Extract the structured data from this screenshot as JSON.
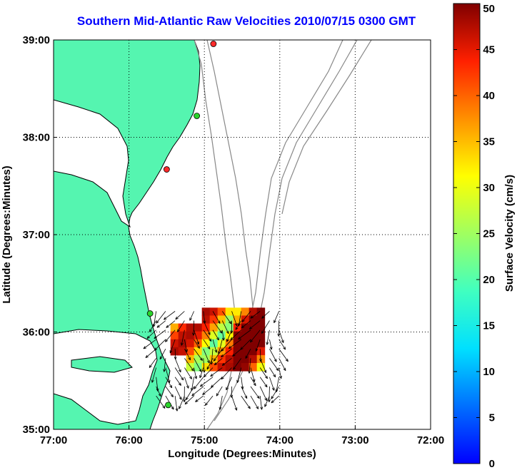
{
  "title": "Southern Mid-Atlantic Raw Velocities 2010/07/15 0300 GMT",
  "map": {
    "lon_range": [
      -77,
      -72
    ],
    "lat_range": [
      35,
      39
    ],
    "x_ticks": [
      "77:00",
      "76:00",
      "75:00",
      "74:00",
      "73:00",
      "72:00"
    ],
    "y_ticks": [
      "35:00",
      "36:00",
      "37:00",
      "38:00",
      "39:00"
    ],
    "xlabel": "Longitude (Degrees:Minutes)",
    "ylabel": "Latitude (Degrees:Minutes)",
    "grid": "dotted",
    "land_color": "#55f5b0",
    "bathymetry_color": "#888888"
  },
  "stations": [
    {
      "lon": -74.88,
      "lat": 38.96,
      "color": "#ff2a2a"
    },
    {
      "lon": -75.1,
      "lat": 38.22,
      "color": "#2bd42b"
    },
    {
      "lon": -75.5,
      "lat": 37.67,
      "color": "#ff2a2a"
    },
    {
      "lon": -75.72,
      "lat": 36.19,
      "color": "#2bd42b"
    },
    {
      "lon": -75.48,
      "lat": 35.25,
      "color": "#2bd42b"
    }
  ],
  "colorbar": {
    "label": "Surface Velocity (cm/s)",
    "ticks": [
      "0",
      "5",
      "10",
      "15",
      "20",
      "25",
      "30",
      "35",
      "40",
      "45",
      "50"
    ],
    "min": 0,
    "max": 50,
    "colormap": "jet"
  },
  "velocity_field": {
    "lon_range": [
      -75.45,
      -74.2
    ],
    "lat_range": [
      35.6,
      36.25
    ],
    "units": "cm/s"
  }
}
